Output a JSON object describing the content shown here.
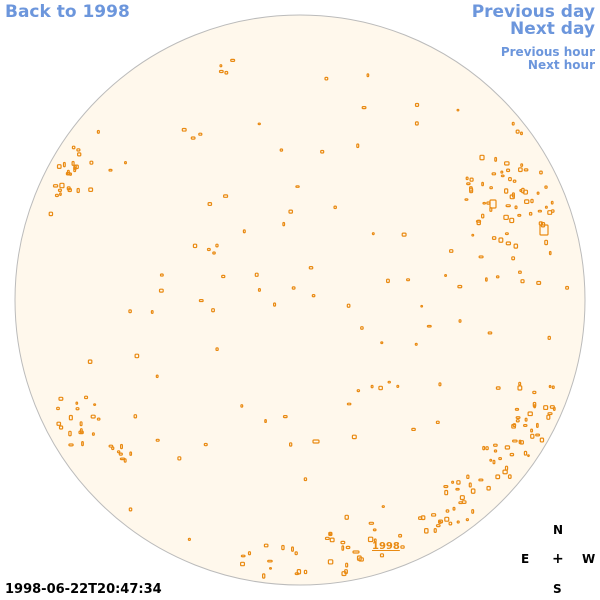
{
  "nav": {
    "back_label": "Back to 1998",
    "prev_day_label": "Previous day",
    "next_day_label": "Next day",
    "prev_hour_label": "Previous hour",
    "next_hour_label": "Next hour"
  },
  "timestamp": "1998-06-22T20:47:34",
  "compass": {
    "north": "N",
    "east": "E",
    "center": "+",
    "west": "W",
    "south": "S"
  },
  "disk_label": "1998",
  "colors": {
    "disk_fill": "#fff8ec",
    "disk_stroke": "#bbbbbb",
    "contour": "#e98a12",
    "link": "#6c96dc"
  }
}
